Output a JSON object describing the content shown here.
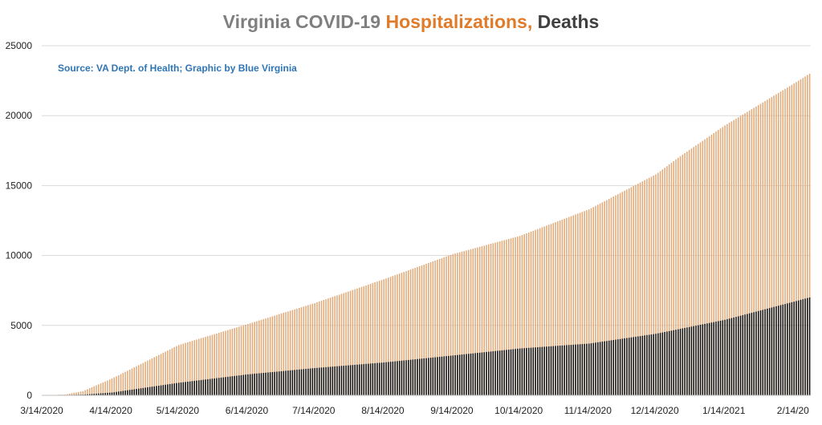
{
  "chart_data": {
    "type": "bar",
    "title": {
      "part1": "Virginia COVID-19 ",
      "part2": "Hospitalizations,",
      "part3": " Deaths"
    },
    "source": "Source: VA Dept. of Health; Graphic by Blue Virginia",
    "colors": {
      "title_part1": "#7f7f7f",
      "title_part2": "#e07b2a",
      "title_part3": "#404040",
      "source": "#2e75b6",
      "hospitalizations": "#e0a978",
      "deaths": "#111111",
      "gridline": "#d9d9d9",
      "axis": "#bfbfbf"
    },
    "ylim": [
      0,
      25000
    ],
    "yticks": [
      "0",
      "5000",
      "10000",
      "15000",
      "20000",
      "25000"
    ],
    "x_start_date": "3/14/2020",
    "x_tick_labels": [
      "3/14/2020",
      "4/14/2020",
      "5/14/2020",
      "6/14/2020",
      "7/14/2020",
      "8/14/2020",
      "9/14/2020",
      "10/14/2020",
      "11/14/2020",
      "12/14/2020",
      "1/14/2021",
      "2/14/20"
    ],
    "x_tick_dates": [
      "2020-03-14",
      "2020-04-14",
      "2020-05-14",
      "2020-06-14",
      "2020-07-14",
      "2020-08-14",
      "2020-09-14",
      "2020-10-14",
      "2020-11-14",
      "2020-12-14",
      "2021-01-14",
      "2021-02-14"
    ],
    "series": [
      {
        "name": "Hospitalizations",
        "key": "hospitalizations",
        "points": [
          {
            "date": "2020-03-14",
            "value": 0
          },
          {
            "date": "2020-03-24",
            "value": 60
          },
          {
            "date": "2020-04-01",
            "value": 300
          },
          {
            "date": "2020-04-14",
            "value": 1200
          },
          {
            "date": "2020-04-24",
            "value": 2000
          },
          {
            "date": "2020-05-04",
            "value": 2800
          },
          {
            "date": "2020-05-14",
            "value": 3600
          },
          {
            "date": "2020-06-14",
            "value": 5100
          },
          {
            "date": "2020-07-14",
            "value": 6600
          },
          {
            "date": "2020-08-14",
            "value": 8300
          },
          {
            "date": "2020-09-14",
            "value": 10100
          },
          {
            "date": "2020-10-14",
            "value": 11400
          },
          {
            "date": "2020-11-14",
            "value": 13300
          },
          {
            "date": "2020-12-14",
            "value": 15800
          },
          {
            "date": "2020-12-25",
            "value": 17100
          },
          {
            "date": "2021-01-14",
            "value": 19300
          },
          {
            "date": "2021-02-14",
            "value": 22300
          },
          {
            "date": "2021-02-21",
            "value": 23000
          }
        ]
      },
      {
        "name": "Deaths",
        "key": "deaths",
        "points": [
          {
            "date": "2020-03-14",
            "value": 0
          },
          {
            "date": "2020-04-01",
            "value": 50
          },
          {
            "date": "2020-04-14",
            "value": 200
          },
          {
            "date": "2020-05-14",
            "value": 900
          },
          {
            "date": "2020-06-14",
            "value": 1500
          },
          {
            "date": "2020-07-14",
            "value": 1950
          },
          {
            "date": "2020-08-14",
            "value": 2350
          },
          {
            "date": "2020-09-14",
            "value": 2850
          },
          {
            "date": "2020-10-14",
            "value": 3350
          },
          {
            "date": "2020-11-14",
            "value": 3700
          },
          {
            "date": "2020-12-14",
            "value": 4400
          },
          {
            "date": "2021-01-14",
            "value": 5400
          },
          {
            "date": "2021-02-14",
            "value": 6700
          },
          {
            "date": "2021-02-21",
            "value": 7000
          }
        ]
      }
    ],
    "grid": true,
    "legend": "none"
  }
}
